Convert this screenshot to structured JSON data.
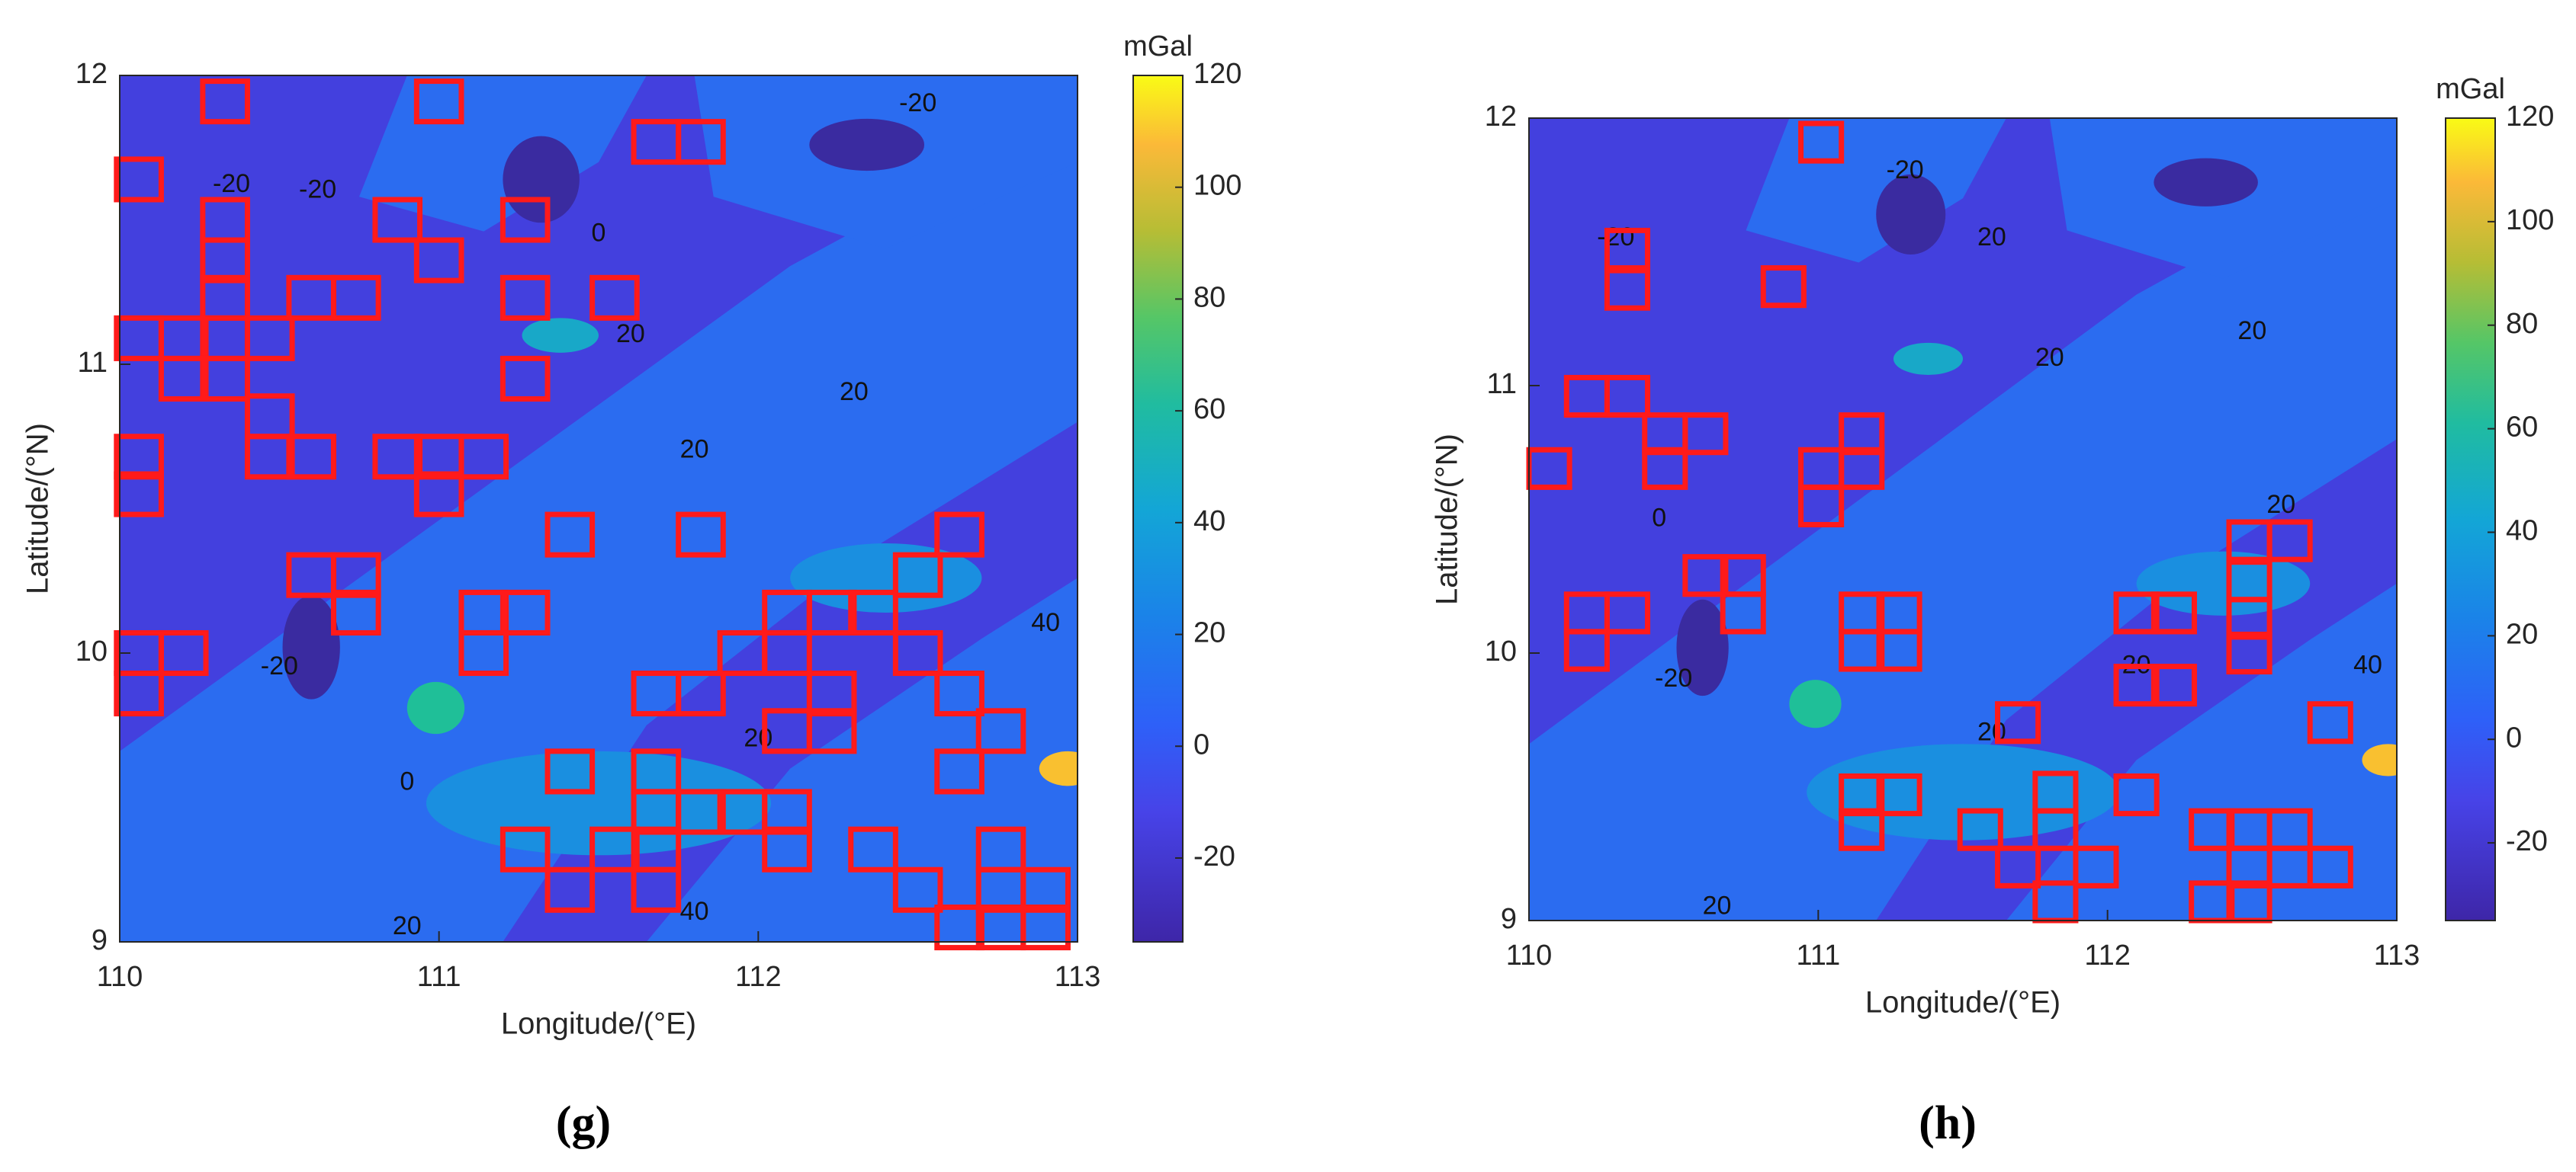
{
  "chart_data": [
    {
      "type": "contour-map",
      "panel_label": "(g)",
      "x_label": "Longitude/(°E)",
      "y_label": "Latitude/(°N)",
      "xlim": [
        110,
        113
      ],
      "ylim": [
        9,
        12
      ],
      "xticks": [
        110,
        111,
        112,
        113
      ],
      "yticks": [
        9,
        10,
        11,
        12
      ],
      "colorbar_label": "mGal",
      "clim": [
        -35,
        120
      ],
      "cticks": [
        -20,
        0,
        20,
        40,
        60,
        80,
        100,
        120
      ],
      "box_color": "#ff1a1a",
      "box_size": 0.14,
      "boxes": {
        "x": [
          110.33,
          111.0,
          110.06,
          111.68,
          111.82,
          110.33,
          110.87,
          111.27,
          111.0,
          110.33,
          110.33,
          110.6,
          110.74,
          111.27,
          111.55,
          110.06,
          110.2,
          110.33,
          110.47,
          110.2,
          110.33,
          111.27,
          110.47,
          110.06,
          110.47,
          110.6,
          110.87,
          111.0,
          111.14,
          110.06,
          111.0,
          111.41,
          111.82,
          110.6,
          110.74,
          110.74,
          112.63,
          112.5,
          111.14,
          111.27,
          112.09,
          112.23,
          112.36,
          111.14,
          111.95,
          112.09,
          112.5,
          110.06,
          110.2,
          110.06,
          111.68,
          111.82,
          112.23,
          112.63,
          112.09,
          112.23,
          112.76,
          112.63,
          111.41,
          111.68,
          111.68,
          111.82,
          111.95,
          112.09,
          111.27,
          111.55,
          111.68,
          112.09,
          112.36,
          112.76,
          111.41,
          111.68,
          112.5,
          112.76,
          112.9,
          112.63,
          112.9,
          112.76
        ],
        "y": [
          11.91,
          11.91,
          11.64,
          11.77,
          11.77,
          11.5,
          11.5,
          11.5,
          11.36,
          11.36,
          11.23,
          11.23,
          11.23,
          11.23,
          11.23,
          11.09,
          11.09,
          11.09,
          11.09,
          10.95,
          10.95,
          10.95,
          10.82,
          10.68,
          10.68,
          10.68,
          10.68,
          10.68,
          10.68,
          10.55,
          10.55,
          10.41,
          10.41,
          10.27,
          10.27,
          10.14,
          10.41,
          10.27,
          10.14,
          10.14,
          10.14,
          10.14,
          10.14,
          10.0,
          10.0,
          10.0,
          10.0,
          10.0,
          10.0,
          9.86,
          9.86,
          9.86,
          9.86,
          9.86,
          9.73,
          9.73,
          9.73,
          9.59,
          9.59,
          9.59,
          9.45,
          9.45,
          9.45,
          9.45,
          9.32,
          9.32,
          9.32,
          9.32,
          9.32,
          9.32,
          9.18,
          9.18,
          9.18,
          9.18,
          9.18,
          9.05,
          9.05,
          9.05
        ]
      },
      "contour_labels": [
        {
          "text": "-20",
          "x": 110.35,
          "y": 11.62
        },
        {
          "text": "-20",
          "x": 110.62,
          "y": 11.6
        },
        {
          "text": "20",
          "x": 111.6,
          "y": 11.1
        },
        {
          "text": "0",
          "x": 111.5,
          "y": 11.45
        },
        {
          "text": "-20",
          "x": 112.5,
          "y": 11.9
        },
        {
          "text": "20",
          "x": 112.3,
          "y": 10.9
        },
        {
          "text": "20",
          "x": 111.8,
          "y": 10.7
        },
        {
          "text": "-20",
          "x": 110.5,
          "y": 9.95
        },
        {
          "text": "40",
          "x": 112.9,
          "y": 10.1
        },
        {
          "text": "20",
          "x": 112.0,
          "y": 9.7
        },
        {
          "text": "0",
          "x": 110.9,
          "y": 9.55
        },
        {
          "text": "20",
          "x": 110.9,
          "y": 9.05
        },
        {
          "text": "40",
          "x": 111.8,
          "y": 9.1
        }
      ]
    },
    {
      "type": "contour-map",
      "panel_label": "(h)",
      "x_label": "Longitude/(°E)",
      "y_label": "Latitude/(°N)",
      "xlim": [
        110,
        113
      ],
      "ylim": [
        9,
        12
      ],
      "xticks": [
        110,
        111,
        112,
        113
      ],
      "yticks": [
        9,
        10,
        11,
        12
      ],
      "colorbar_label": "mGal",
      "clim": [
        -35,
        120
      ],
      "cticks": [
        -20,
        0,
        20,
        40,
        60,
        80,
        100,
        120
      ],
      "box_color": "#ff1a1a",
      "box_size": 0.14,
      "boxes": {
        "x": [
          111.01,
          110.34,
          110.34,
          110.88,
          110.07,
          110.2,
          110.34,
          110.47,
          110.61,
          110.47,
          111.15,
          111.15,
          111.01,
          111.01,
          112.49,
          112.63,
          112.49,
          112.49,
          112.49,
          110.61,
          110.74,
          110.74,
          110.2,
          110.34,
          110.2,
          111.15,
          111.28,
          111.15,
          111.28,
          112.1,
          112.23,
          112.1,
          112.23,
          111.69,
          112.77,
          111.15,
          111.28,
          111.15,
          112.1,
          111.56,
          111.69,
          111.82,
          111.82,
          111.96,
          111.82,
          112.36,
          112.36,
          112.49,
          112.63,
          112.49,
          112.63,
          112.77,
          112.49
        ],
        "y": [
          11.91,
          11.51,
          11.36,
          11.37,
          10.69,
          10.96,
          10.96,
          10.82,
          10.82,
          10.69,
          10.82,
          10.69,
          10.69,
          10.55,
          10.42,
          10.42,
          10.27,
          10.13,
          10.0,
          10.29,
          10.29,
          10.15,
          10.15,
          10.15,
          10.01,
          10.15,
          10.15,
          10.01,
          10.01,
          10.15,
          10.15,
          9.88,
          9.88,
          9.74,
          9.74,
          9.47,
          9.47,
          9.34,
          9.47,
          9.34,
          9.2,
          9.48,
          9.34,
          9.2,
          9.07,
          9.34,
          9.07,
          9.34,
          9.34,
          9.2,
          9.2,
          9.2,
          9.07
        ]
      },
      "contour_labels": [
        {
          "text": "-20",
          "x": 110.3,
          "y": 11.55
        },
        {
          "text": "20",
          "x": 111.6,
          "y": 11.55
        },
        {
          "text": "-20",
          "x": 111.3,
          "y": 11.8
        },
        {
          "text": "20",
          "x": 111.8,
          "y": 11.1
        },
        {
          "text": "20",
          "x": 112.5,
          "y": 11.2
        },
        {
          "text": "20",
          "x": 112.6,
          "y": 10.55
        },
        {
          "text": "-20",
          "x": 110.5,
          "y": 9.9
        },
        {
          "text": "40",
          "x": 112.9,
          "y": 9.95
        },
        {
          "text": "20",
          "x": 111.6,
          "y": 9.7
        },
        {
          "text": "20",
          "x": 112.1,
          "y": 9.95
        },
        {
          "text": "20",
          "x": 110.65,
          "y": 9.05
        },
        {
          "text": "0",
          "x": 110.45,
          "y": 10.5
        }
      ]
    }
  ]
}
